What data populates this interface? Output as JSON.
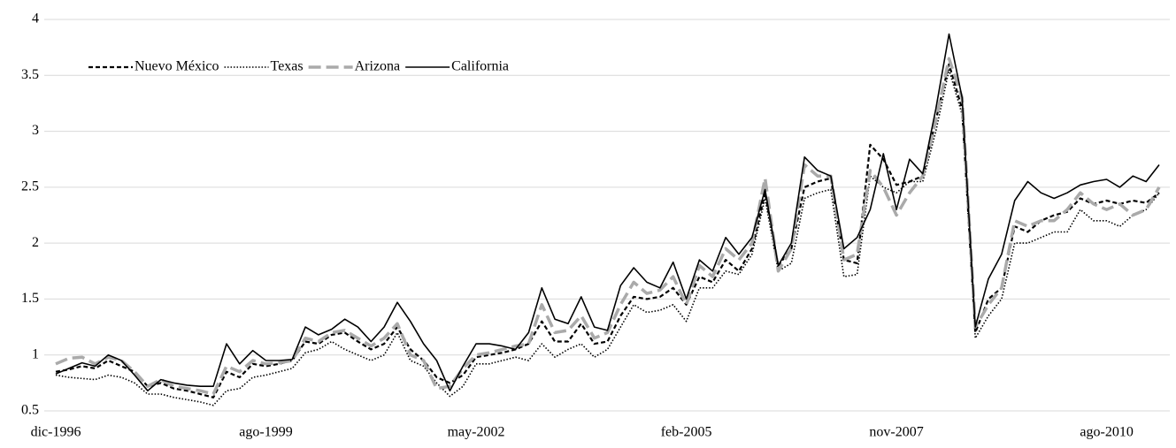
{
  "chart_data": {
    "type": "line",
    "categories": [
      "dic-1996",
      null,
      null,
      null,
      null,
      null,
      null,
      null,
      null,
      null,
      null,
      null,
      null,
      null,
      null,
      null,
      "ago-1999",
      null,
      null,
      null,
      null,
      null,
      null,
      null,
      null,
      null,
      null,
      null,
      null,
      null,
      null,
      null,
      "may-2002",
      null,
      null,
      null,
      null,
      null,
      null,
      null,
      null,
      null,
      null,
      null,
      null,
      null,
      null,
      null,
      "feb-2005",
      null,
      null,
      null,
      null,
      null,
      null,
      null,
      null,
      null,
      null,
      null,
      null,
      null,
      null,
      null,
      "nov-2007",
      null,
      null,
      null,
      null,
      null,
      null,
      null,
      null,
      null,
      null,
      null,
      null,
      null,
      null,
      null,
      "ago-2010",
      null,
      null,
      null,
      null
    ],
    "ylim": [
      0.5,
      4
    ],
    "yticks": [
      0.5,
      1,
      1.5,
      2,
      2.5,
      3,
      3.5,
      4
    ],
    "grid": true,
    "legend": "top-left",
    "series": [
      {
        "name": "Nuevo México",
        "color": "#000000",
        "dash": "5,3",
        "width": 2.2,
        "values": [
          0.85,
          0.87,
          0.9,
          0.88,
          0.95,
          0.9,
          0.85,
          0.72,
          0.75,
          0.7,
          0.68,
          0.65,
          0.62,
          0.85,
          0.8,
          0.92,
          0.9,
          0.92,
          0.95,
          1.12,
          1.1,
          1.18,
          1.2,
          1.12,
          1.05,
          1.1,
          1.25,
          1.05,
          0.95,
          0.8,
          0.75,
          0.82,
          0.98,
          1.0,
          1.02,
          1.05,
          1.1,
          1.3,
          1.12,
          1.12,
          1.28,
          1.1,
          1.12,
          1.35,
          1.52,
          1.5,
          1.52,
          1.6,
          1.45,
          1.7,
          1.65,
          1.85,
          1.75,
          1.95,
          2.45,
          1.8,
          1.95,
          2.5,
          2.55,
          2.58,
          1.85,
          1.82,
          2.88,
          2.75,
          2.52,
          2.55,
          2.6,
          3.1,
          3.6,
          3.2,
          1.2,
          1.5,
          1.6,
          2.15,
          2.1,
          2.2,
          2.25,
          2.28,
          2.4,
          2.35,
          2.38,
          2.35,
          2.38,
          2.36,
          2.45
        ]
      },
      {
        "name": "Texas",
        "color": "#000000",
        "dash": "1.5,2",
        "width": 1.6,
        "values": [
          0.82,
          0.8,
          0.79,
          0.78,
          0.82,
          0.8,
          0.75,
          0.65,
          0.65,
          0.62,
          0.6,
          0.58,
          0.55,
          0.68,
          0.7,
          0.8,
          0.82,
          0.85,
          0.88,
          1.02,
          1.05,
          1.12,
          1.05,
          1.0,
          0.95,
          1.0,
          1.2,
          0.95,
          0.9,
          0.75,
          0.63,
          0.72,
          0.92,
          0.92,
          0.95,
          0.98,
          0.95,
          1.1,
          0.98,
          1.05,
          1.1,
          0.98,
          1.05,
          1.25,
          1.45,
          1.38,
          1.4,
          1.45,
          1.3,
          1.6,
          1.6,
          1.75,
          1.72,
          1.9,
          2.4,
          1.75,
          1.82,
          2.4,
          2.45,
          2.48,
          1.7,
          1.72,
          2.6,
          2.5,
          2.45,
          2.55,
          2.55,
          3.0,
          3.55,
          3.15,
          1.15,
          1.35,
          1.5,
          2.0,
          2.0,
          2.05,
          2.1,
          2.1,
          2.3,
          2.2,
          2.2,
          2.15,
          2.25,
          2.3,
          2.45
        ]
      },
      {
        "name": "Arizona",
        "color": "#aaaaaa",
        "dash": "14,6",
        "width": 3.5,
        "values": [
          0.92,
          0.97,
          0.98,
          0.92,
          0.98,
          0.95,
          0.85,
          0.72,
          0.78,
          0.72,
          0.7,
          0.68,
          0.65,
          0.9,
          0.85,
          0.95,
          0.92,
          0.93,
          0.95,
          1.15,
          1.12,
          1.2,
          1.22,
          1.15,
          1.08,
          1.15,
          1.28,
          1.0,
          0.95,
          0.7,
          0.72,
          0.88,
          1.0,
          1.02,
          1.05,
          1.08,
          1.1,
          1.45,
          1.2,
          1.22,
          1.35,
          1.15,
          1.2,
          1.45,
          1.65,
          1.55,
          1.58,
          1.7,
          1.45,
          1.8,
          1.7,
          1.95,
          1.85,
          2.0,
          2.58,
          1.75,
          1.95,
          2.7,
          2.6,
          2.6,
          1.85,
          1.9,
          2.65,
          2.5,
          2.25,
          2.45,
          2.6,
          3.1,
          3.65,
          3.3,
          1.25,
          1.45,
          1.6,
          2.2,
          2.15,
          2.2,
          2.2,
          2.3,
          2.45,
          2.35,
          2.3,
          2.35,
          2.25,
          2.3,
          2.5
        ]
      },
      {
        "name": "California",
        "color": "#000000",
        "dash": "none",
        "width": 1.6,
        "values": [
          0.83,
          0.88,
          0.93,
          0.9,
          1.0,
          0.95,
          0.82,
          0.68,
          0.78,
          0.75,
          0.73,
          0.72,
          0.72,
          1.1,
          0.92,
          1.04,
          0.95,
          0.95,
          0.96,
          1.25,
          1.18,
          1.23,
          1.32,
          1.25,
          1.12,
          1.25,
          1.47,
          1.3,
          1.1,
          0.95,
          0.68,
          0.9,
          1.1,
          1.1,
          1.08,
          1.05,
          1.2,
          1.6,
          1.32,
          1.28,
          1.52,
          1.25,
          1.22,
          1.62,
          1.78,
          1.65,
          1.6,
          1.83,
          1.5,
          1.85,
          1.75,
          2.05,
          1.9,
          2.05,
          2.48,
          1.8,
          2.0,
          2.77,
          2.65,
          2.6,
          1.95,
          2.05,
          2.3,
          2.8,
          2.3,
          2.75,
          2.62,
          3.2,
          3.87,
          3.3,
          1.25,
          1.68,
          1.9,
          2.38,
          2.55,
          2.45,
          2.4,
          2.45,
          2.52,
          2.55,
          2.57,
          2.5,
          2.6,
          2.55,
          2.7
        ]
      }
    ]
  }
}
